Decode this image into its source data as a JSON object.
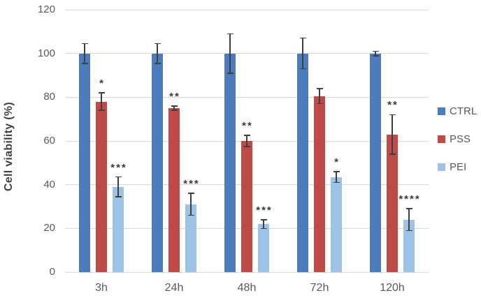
{
  "chart_data": {
    "type": "bar",
    "title": "",
    "xlabel": "",
    "ylabel": "Cell viability (%)",
    "ylim": [
      0,
      120
    ],
    "ytick_interval": 20,
    "grid": true,
    "legend_position": "right",
    "categories": [
      "3h",
      "24h",
      "48h",
      "72h",
      "120h"
    ],
    "series": [
      {
        "name": "CTRL",
        "color": "#4a7cbe",
        "values": [
          100,
          100,
          100,
          100,
          100
        ],
        "errors": [
          4.5,
          4.5,
          9,
          7,
          1
        ],
        "significance": [
          "",
          "",
          "",
          "",
          ""
        ]
      },
      {
        "name": "PSS",
        "color": "#be4b48",
        "values": [
          78,
          75,
          60,
          80.5,
          63
        ],
        "errors": [
          4,
          1,
          2.5,
          3.5,
          9
        ],
        "significance": [
          "*",
          "**",
          "**",
          "",
          "**"
        ]
      },
      {
        "name": "PEI",
        "color": "#9dc3e6",
        "values": [
          39,
          31,
          22,
          43.5,
          24
        ],
        "errors": [
          4.5,
          5,
          2,
          2.5,
          5
        ],
        "significance": [
          "***",
          "***",
          "***",
          "*",
          "****"
        ]
      }
    ],
    "error_bar_color": "#3f3f3f",
    "gridline_color": "#d9d9d9",
    "axis_text_color": "#595959"
  }
}
